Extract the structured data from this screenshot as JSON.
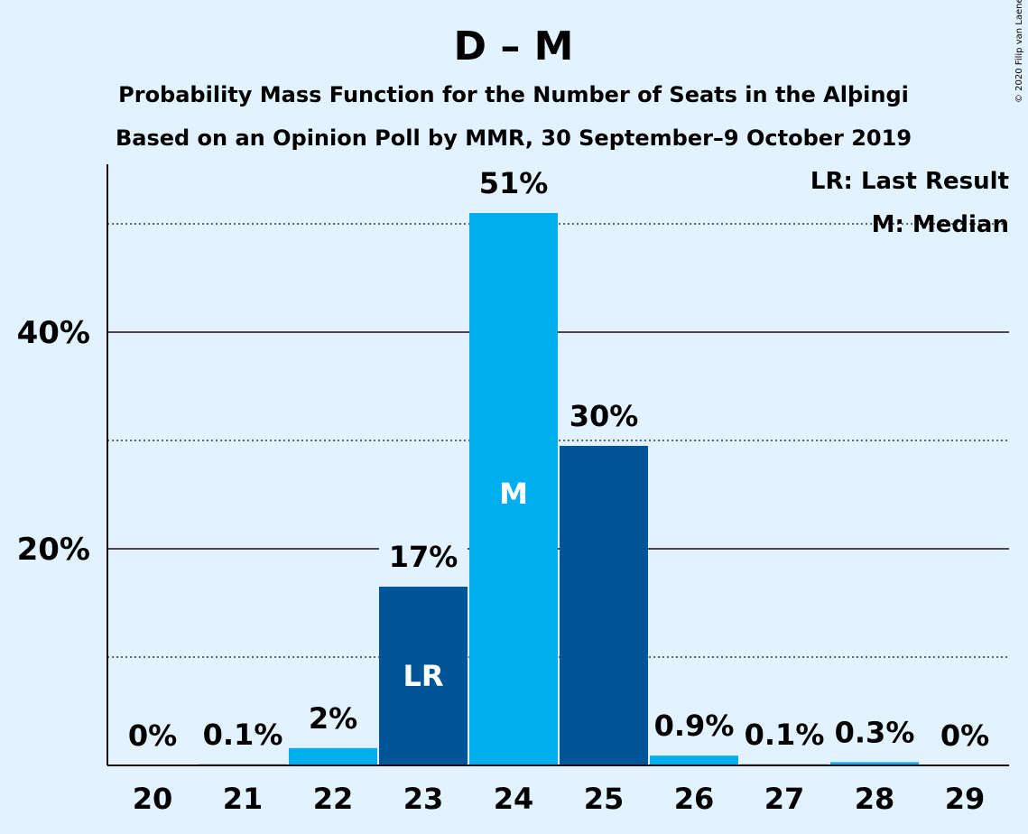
{
  "chart_data": {
    "type": "bar",
    "title": "D – M",
    "subtitle_1": "Probability Mass Function for the Number of Seats in the Alþingi",
    "subtitle_2": "Based on an Opinion Poll by MMR, 30 September–9 October 2019",
    "copyright": "© 2020 Filip van Laenen",
    "categories": [
      "20",
      "21",
      "22",
      "23",
      "24",
      "25",
      "26",
      "27",
      "28",
      "29"
    ],
    "values": [
      0,
      0.1,
      1.6,
      16.5,
      51,
      29.5,
      0.9,
      0.1,
      0.3,
      0
    ],
    "data_labels": [
      "0%",
      "0.1%",
      "2%",
      "17%",
      "51%",
      "30%",
      "0.9%",
      "0.1%",
      "0.3%",
      "0%"
    ],
    "bar_colors": [
      "#00aeef",
      "#005599",
      "#00aeef",
      "#005599",
      "#00aeef",
      "#005599",
      "#00aeef",
      "#005599",
      "#00aeef",
      "#005599"
    ],
    "in_bar_labels": [
      {
        "category": "23",
        "text": "LR"
      },
      {
        "category": "24",
        "text": "M"
      }
    ],
    "y_ticks": [
      {
        "value": 20,
        "label": "20%"
      },
      {
        "value": 40,
        "label": "40%"
      }
    ],
    "minor_gridlines": [
      10,
      30,
      50
    ],
    "ylim": [
      0,
      55.5
    ],
    "legend": [
      "LR: Last Result",
      "M: Median"
    ],
    "legend_position": "top-right",
    "grid": true
  }
}
